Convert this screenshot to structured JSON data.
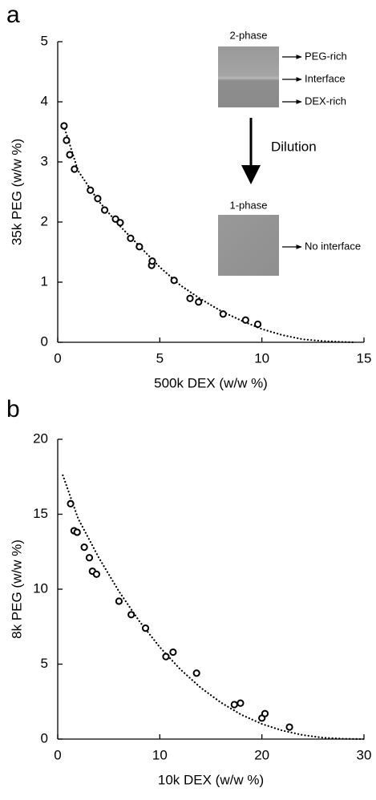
{
  "chart_data": [
    {
      "type": "scatter",
      "panel": "a",
      "xlabel": "500k DEX (w/w %)",
      "ylabel": "35k PEG (w/w %)",
      "xlim": [
        0,
        15
      ],
      "xticks": [
        0,
        5,
        10,
        15
      ],
      "ylim": [
        0,
        5
      ],
      "yticks": [
        0,
        1,
        2,
        3,
        4,
        5
      ],
      "series": [
        {
          "marker": "circle",
          "color": "#000000",
          "x": [
            0.31,
            0.43,
            0.59,
            0.82,
            1.6,
            1.96,
            2.3,
            2.83,
            3.06,
            3.57,
            4.0,
            4.6,
            4.63,
            5.7,
            6.48,
            6.9,
            8.1,
            9.2,
            9.8
          ],
          "values": [
            3.6,
            3.36,
            3.12,
            2.88,
            2.53,
            2.39,
            2.2,
            2.05,
            1.99,
            1.73,
            1.59,
            1.28,
            1.35,
            1.03,
            0.73,
            0.67,
            0.47,
            0.37,
            0.3
          ]
        },
        {
          "style": "dotted",
          "color": "#000000",
          "x": [
            0.3,
            1,
            2,
            3,
            4,
            5,
            6,
            7,
            8,
            9,
            10,
            11,
            12,
            13,
            14,
            14.5
          ],
          "values": [
            3.6,
            2.85,
            2.35,
            1.95,
            1.6,
            1.25,
            0.95,
            0.72,
            0.52,
            0.36,
            0.22,
            0.12,
            0.05,
            0.02,
            0.005,
            0
          ]
        }
      ],
      "inset": {
        "top_label": "2-phase",
        "top_labels": [
          "PEG-rich",
          "Interface",
          "DEX-rich"
        ],
        "arrow_label": "Dilution",
        "bottom_label": "1-phase",
        "bottom_labels": [
          "No interface"
        ]
      }
    },
    {
      "type": "scatter",
      "panel": "b",
      "xlabel": "10k DEX (w/w %)",
      "ylabel": "8k PEG (w/w %)",
      "xlim": [
        0,
        30
      ],
      "xticks": [
        0,
        10,
        20,
        30
      ],
      "ylim": [
        0,
        20
      ],
      "yticks": [
        0,
        5,
        10,
        15,
        20
      ],
      "series": [
        {
          "marker": "circle",
          "color": "#000000",
          "x": [
            1.26,
            1.6,
            1.9,
            2.6,
            3.1,
            3.4,
            3.8,
            6.0,
            7.2,
            8.6,
            10.6,
            11.3,
            13.6,
            17.3,
            17.9,
            20.0,
            20.3,
            22.7
          ],
          "values": [
            15.7,
            13.9,
            13.8,
            12.8,
            12.1,
            11.2,
            11.0,
            9.2,
            8.3,
            7.4,
            5.5,
            5.8,
            4.4,
            2.3,
            2.4,
            1.4,
            1.7,
            0.8
          ]
        },
        {
          "style": "dotted",
          "color": "#000000",
          "x": [
            0.5,
            2,
            4,
            6,
            8,
            10,
            12,
            14,
            16,
            18,
            20,
            22,
            24,
            26,
            28,
            30
          ],
          "values": [
            17.6,
            14.71,
            12.13,
            9.85,
            7.86,
            6.13,
            4.66,
            3.43,
            2.43,
            1.62,
            1.01,
            0.57,
            0.27,
            0.09,
            0.02,
            0
          ]
        }
      ]
    }
  ]
}
